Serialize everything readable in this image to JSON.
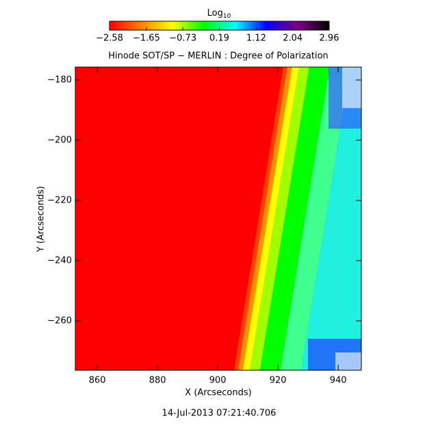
{
  "chart_data": {
    "type": "image",
    "title": "Hinode SOT/SP − MERLIN : Degree of Polarization",
    "x_label": "X (Arcseconds)",
    "y_label": "Y (Arcseconds)",
    "date": "14-Jul-2013 07:21:40.706",
    "colorbar_label": [
      "Log",
      "10"
    ],
    "clim": [
      -2.58,
      2.96
    ],
    "colorbar_ticks": [
      {
        "value": -2.58,
        "label": "−2.58"
      },
      {
        "value": -1.65,
        "label": "−1.65"
      },
      {
        "value": -0.73,
        "label": "−0.73"
      },
      0.19,
      1.12,
      2.04,
      2.96
    ],
    "colormap": [
      "#ff0000",
      "#ff8000",
      "#ffff00",
      "#00ff00",
      "#00ffff",
      "#0000ff",
      "#800080",
      "#000000"
    ],
    "xlim": [
      852.7,
      947.7
    ],
    "xticks": [
      860,
      880,
      900,
      920,
      940
    ],
    "ylim": [
      -276.4,
      -175.7
    ],
    "yticks": [
      {
        "value": -180,
        "label": "−180"
      },
      {
        "value": -200,
        "label": "−200"
      },
      {
        "value": -220,
        "label": "−220"
      },
      {
        "value": -240,
        "label": "−240"
      },
      {
        "value": -260,
        "label": "−260"
      }
    ]
  }
}
